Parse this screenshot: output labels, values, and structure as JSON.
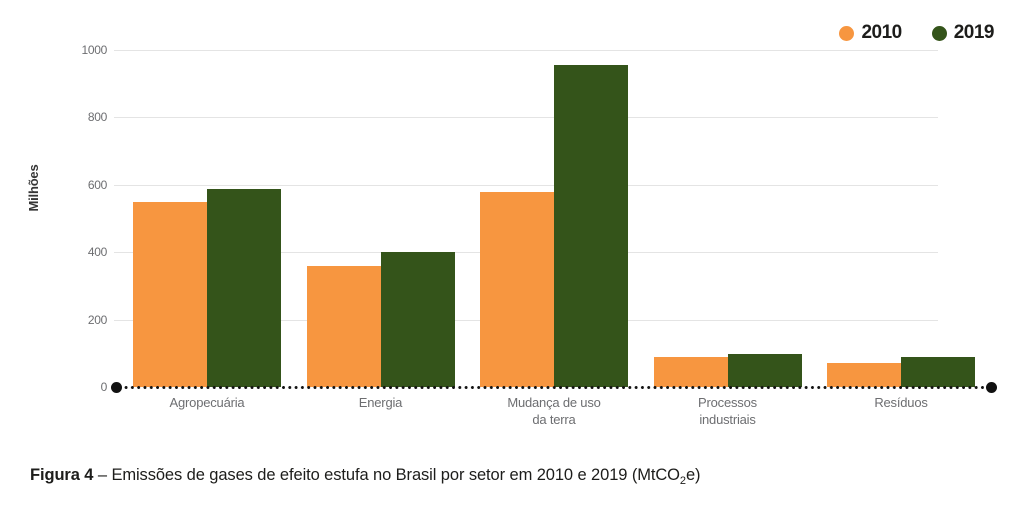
{
  "legend": [
    {
      "label": "2010",
      "color": "#F79640"
    },
    {
      "label": "2019",
      "color": "#34541A"
    }
  ],
  "chart_data": {
    "type": "bar",
    "title": "",
    "ylabel": "Milhões",
    "xlabel": "",
    "ylim": [
      0,
      1000
    ],
    "yticks": [
      0,
      200,
      400,
      600,
      800,
      1000
    ],
    "grid": true,
    "legend_position": "top-right",
    "categories": [
      "Agropecuária",
      "Energia",
      "Mudança de uso\nda terra",
      "Processos\nindustriais",
      "Resíduos"
    ],
    "series": [
      {
        "name": "2010",
        "color": "#F79640",
        "values": [
          550,
          360,
          578,
          89,
          72
        ]
      },
      {
        "name": "2019",
        "color": "#34541A",
        "values": [
          588,
          400,
          955,
          97,
          88
        ]
      }
    ]
  },
  "caption": {
    "prefix": "Figura 4",
    "separator": "–",
    "text": "Emissões de gases de efeito estufa no Brasil por setor em 2010 e 2019",
    "unit_prefix": "(MtCO",
    "unit_sub": "2",
    "unit_suffix": "e)"
  }
}
